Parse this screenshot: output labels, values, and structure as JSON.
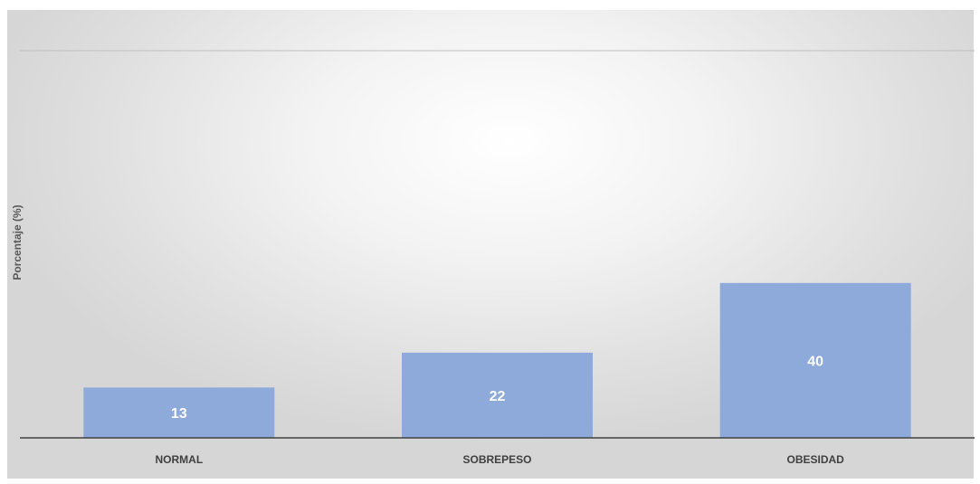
{
  "chart_data": {
    "type": "bar",
    "categories": [
      "NORMAL",
      "SOBREPESO",
      "OBESIDAD"
    ],
    "values": [
      13,
      22,
      40
    ],
    "data_labels": [
      "13",
      "22",
      "40"
    ],
    "title": "",
    "xlabel": "",
    "ylabel": "Porcentaje (%)",
    "ylim": [
      0,
      100
    ],
    "grid": true,
    "legend": "none",
    "colors": {
      "bar": "#8eaadb",
      "data_label": "#ffffff",
      "axis": "#404040",
      "gridline": "#bfbfbf",
      "tick_label": "#404040"
    }
  }
}
